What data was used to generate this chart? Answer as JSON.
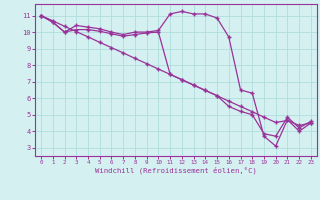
{
  "line1_x": [
    0,
    1,
    2,
    3,
    4,
    5,
    6,
    7,
    8,
    9,
    10,
    11,
    12,
    13,
    14,
    15,
    16,
    17,
    18,
    19,
    20,
    21,
    22,
    23
  ],
  "line1_y": [
    11,
    10.6,
    10.0,
    10.4,
    10.3,
    10.2,
    10.0,
    9.85,
    10.0,
    10.0,
    10.1,
    11.1,
    11.25,
    11.1,
    11.1,
    10.85,
    9.7,
    6.5,
    6.3,
    3.7,
    3.1,
    4.7,
    4.0,
    4.5
  ],
  "line2_x": [
    0,
    1,
    2,
    3,
    4,
    5,
    6,
    7,
    8,
    9,
    10,
    11,
    12,
    13,
    14,
    15,
    16,
    17,
    18,
    19,
    20,
    21,
    22,
    23
  ],
  "line2_y": [
    11,
    10.68,
    10.35,
    10.03,
    9.71,
    9.38,
    9.06,
    8.74,
    8.41,
    8.09,
    7.76,
    7.44,
    7.12,
    6.79,
    6.47,
    6.15,
    5.82,
    5.5,
    5.18,
    4.85,
    4.53,
    4.65,
    4.35,
    4.5
  ],
  "line3_x": [
    0,
    1,
    2,
    3,
    4,
    5,
    6,
    7,
    8,
    9,
    10,
    11,
    12,
    13,
    14,
    15,
    16,
    17,
    18,
    19,
    20,
    21,
    22,
    23
  ],
  "line3_y": [
    11,
    10.6,
    10.0,
    10.15,
    10.15,
    10.05,
    9.9,
    9.75,
    9.85,
    9.95,
    10.0,
    7.44,
    7.12,
    6.79,
    6.47,
    6.15,
    5.5,
    5.2,
    5.0,
    3.85,
    3.7,
    4.85,
    4.2,
    4.6
  ],
  "line_color": "#993399",
  "bg_color": "#d4f0f0",
  "grid_color": "#b0dede",
  "xlabel": "Windchill (Refroidissement éolien,°C)",
  "xlim": [
    -0.5,
    23.5
  ],
  "ylim": [
    2.5,
    11.7
  ],
  "xticks": [
    0,
    1,
    2,
    3,
    4,
    5,
    6,
    7,
    8,
    9,
    10,
    11,
    12,
    13,
    14,
    15,
    16,
    17,
    18,
    19,
    20,
    21,
    22,
    23
  ],
  "yticks": [
    3,
    4,
    5,
    6,
    7,
    8,
    9,
    10,
    11
  ],
  "marker": "+",
  "ms": 3.5,
  "lw": 0.9,
  "mew": 1.0
}
